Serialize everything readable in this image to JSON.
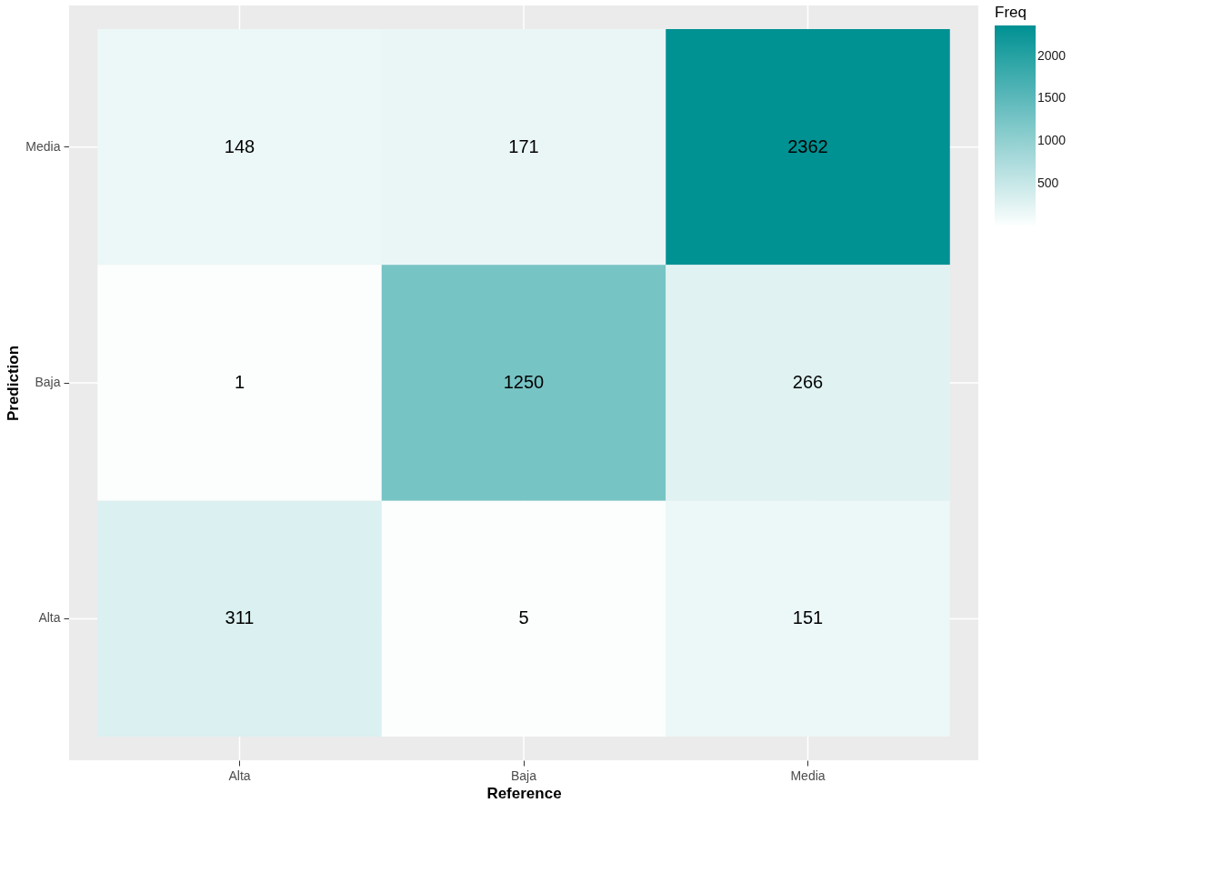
{
  "chart_data": {
    "type": "heatmap",
    "xlabel": "Reference",
    "ylabel": "Prediction",
    "legend_title": "Freq",
    "categories": [
      "Alta",
      "Baja",
      "Media"
    ],
    "y_categories": [
      "Media",
      "Baja",
      "Alta"
    ],
    "cells": [
      [
        148,
        171,
        2362
      ],
      [
        1,
        1250,
        266
      ],
      [
        311,
        5,
        151
      ]
    ],
    "clim": [
      1,
      2362
    ],
    "cticks": [
      500,
      1000,
      1500,
      2000
    ],
    "colors": [
      "#fcfefe",
      "#009193"
    ],
    "data_labels": true,
    "grid": true
  }
}
